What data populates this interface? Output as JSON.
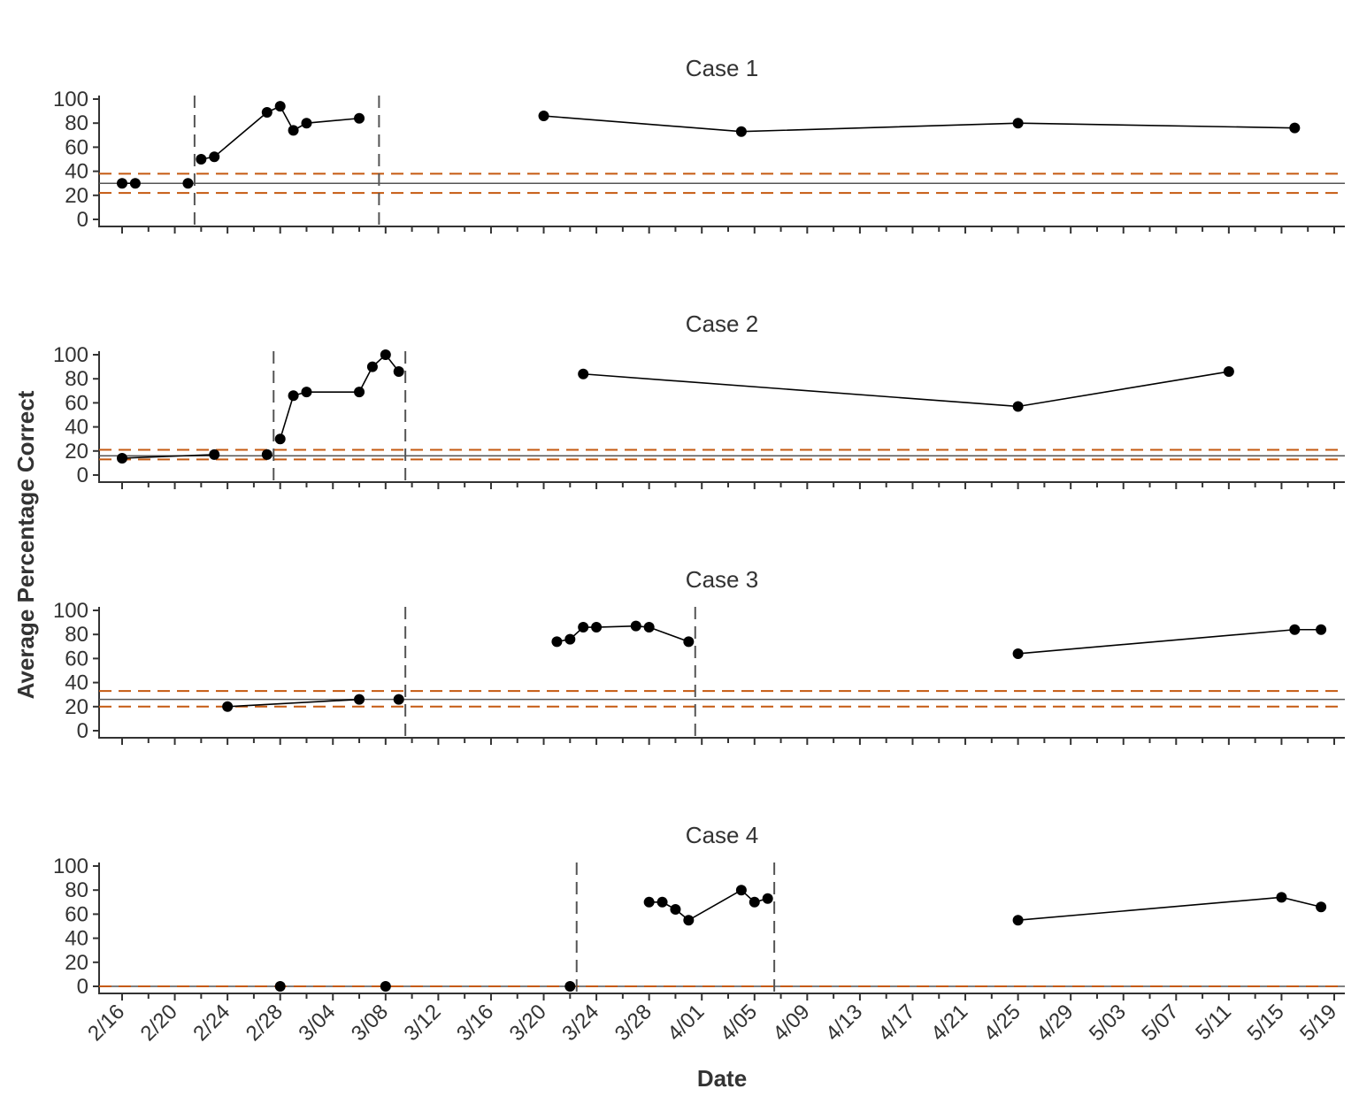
{
  "chart_data": {
    "type": "line",
    "ylabel": "Average Percentage Correct",
    "xlabel": "Date",
    "x_tick_labels": [
      "2/16",
      "2/20",
      "2/24",
      "2/28",
      "3/04",
      "3/08",
      "3/12",
      "3/16",
      "3/20",
      "3/24",
      "3/28",
      "4/01",
      "4/05",
      "4/09",
      "4/13",
      "4/17",
      "4/21",
      "4/25",
      "4/29",
      "5/03",
      "5/07",
      "5/11",
      "5/15",
      "5/19"
    ],
    "y_tick_labels": [
      "0",
      "20",
      "40",
      "60",
      "80",
      "100"
    ],
    "ylim": [
      0,
      100
    ],
    "xlim": [
      "2/14",
      "5/20"
    ],
    "grid": false,
    "colors": {
      "series": "#000000",
      "phase_line": "#555555",
      "reference_line": "#C55A11",
      "axis": "#333333"
    },
    "panels": [
      {
        "title": "Case 1",
        "phase_change_dates": [
          "2/21",
          "3/07"
        ],
        "reference_lines": {
          "solid": 30,
          "dashed": [
            38,
            22
          ]
        },
        "segments": [
          [
            [
              "2/16",
              30
            ],
            [
              "2/17",
              30
            ]
          ],
          [
            [
              "2/21",
              30
            ]
          ],
          [
            [
              "2/22",
              50
            ],
            [
              "2/23",
              52
            ],
            [
              "2/27",
              89
            ],
            [
              "2/28",
              94
            ],
            [
              "3/01",
              74
            ],
            [
              "3/02",
              80
            ],
            [
              "3/06",
              84
            ]
          ],
          [
            [
              "3/20",
              86
            ],
            [
              "4/04",
              73
            ],
            [
              "4/25",
              80
            ],
            [
              "5/16",
              76
            ]
          ]
        ]
      },
      {
        "title": "Case 2",
        "phase_change_dates": [
          "2/27",
          "3/09"
        ],
        "reference_lines": {
          "solid": 16,
          "dashed": [
            21,
            13
          ]
        },
        "segments": [
          [
            [
              "2/16",
              14
            ],
            [
              "2/23",
              17
            ]
          ],
          [
            [
              "2/27",
              17
            ]
          ],
          [
            [
              "2/28",
              30
            ],
            [
              "3/01",
              66
            ],
            [
              "3/02",
              69
            ],
            [
              "3/06",
              69
            ],
            [
              "3/07",
              90
            ],
            [
              "3/08",
              100
            ],
            [
              "3/09",
              86
            ]
          ],
          [
            [
              "3/23",
              84
            ],
            [
              "4/25",
              57
            ],
            [
              "5/11",
              86
            ]
          ]
        ]
      },
      {
        "title": "Case 3",
        "phase_change_dates": [
          "3/09",
          "3/31"
        ],
        "reference_lines": {
          "solid": 26,
          "dashed": [
            33,
            20
          ]
        },
        "segments": [
          [
            [
              "2/24",
              20
            ],
            [
              "3/06",
              26
            ]
          ],
          [
            [
              "3/09",
              26
            ]
          ],
          [
            [
              "3/21",
              74
            ],
            [
              "3/22",
              76
            ],
            [
              "3/23",
              86
            ],
            [
              "3/24",
              86
            ],
            [
              "3/27",
              87
            ],
            [
              "3/28",
              86
            ],
            [
              "3/31",
              74
            ]
          ],
          [
            [
              "4/25",
              64
            ],
            [
              "5/16",
              84
            ],
            [
              "5/18",
              84
            ]
          ]
        ]
      },
      {
        "title": "Case 4",
        "phase_change_dates": [
          "3/22",
          "4/06"
        ],
        "reference_lines": {
          "solid": 0,
          "dashed": [
            0
          ]
        },
        "segments": [
          [
            [
              "2/28",
              0
            ]
          ],
          [
            [
              "3/08",
              0
            ]
          ],
          [
            [
              "3/22",
              0
            ]
          ],
          [
            [
              "3/28",
              70
            ],
            [
              "3/29",
              70
            ],
            [
              "3/30",
              64
            ],
            [
              "3/31",
              55
            ],
            [
              "4/04",
              80
            ],
            [
              "4/05",
              70
            ],
            [
              "4/06",
              73
            ]
          ],
          [
            [
              "4/25",
              55
            ],
            [
              "5/15",
              74
            ],
            [
              "5/18",
              66
            ]
          ]
        ]
      }
    ]
  }
}
